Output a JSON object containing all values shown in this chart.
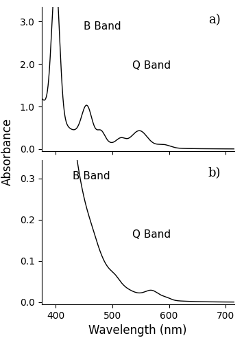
{
  "xlabel": "Wavelength (nm)",
  "ylabel": "Absorbance",
  "panel_a_label": "a)",
  "panel_b_label": "b)",
  "b_band_label": "B Band",
  "q_band_label": "Q Band",
  "xlim": [
    375,
    715
  ],
  "ylim_a": [
    -0.05,
    3.35
  ],
  "ylim_b": [
    -0.005,
    0.345
  ],
  "yticks_a": [
    0.0,
    1.0,
    2.0,
    3.0
  ],
  "yticks_b": [
    0.0,
    0.1,
    0.2,
    0.3
  ],
  "xticks": [
    400,
    500,
    600,
    700
  ],
  "line_color": "#000000",
  "background_color": "#ffffff",
  "label_fontsize": 12,
  "tick_fontsize": 10,
  "annotation_fontsize": 11
}
